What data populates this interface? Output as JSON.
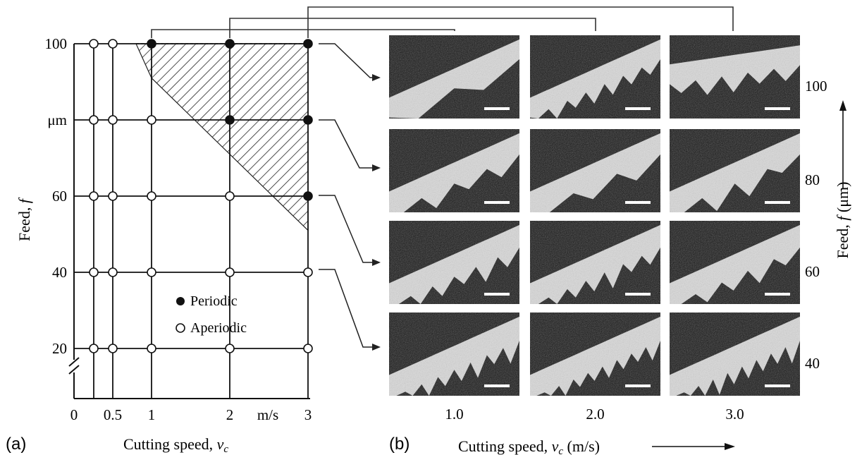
{
  "panel_a": {
    "label": "(a)",
    "xlabel_prefix": "Cutting speed, ",
    "xlabel_var": "v",
    "xlabel_sub": "c",
    "ylabel_prefix": "Feed, ",
    "ylabel_var": "f",
    "x_ticks": [
      {
        "label": "0",
        "x": 0
      },
      {
        "label": "0.5",
        "x": 0.5
      },
      {
        "label": "1",
        "x": 1
      },
      {
        "label": "2",
        "x": 2
      },
      {
        "label": "m/s",
        "x": 2.5
      },
      {
        "label": "3",
        "x": 3
      }
    ],
    "y_ticks": [
      {
        "label": "100",
        "y": 100
      },
      {
        "label": "μm",
        "y": 80
      },
      {
        "label": "60",
        "y": 60
      },
      {
        "label": "40",
        "y": 40
      },
      {
        "label": "20",
        "y": 20
      }
    ],
    "legend": {
      "periodic": "Periodic",
      "aperiodic": "Aperiodic"
    }
  },
  "chart_data": {
    "type": "scatter",
    "x_values": [
      0.25,
      0.5,
      1,
      2,
      3
    ],
    "y_values": [
      100,
      80,
      60,
      40,
      20
    ],
    "series": [
      {
        "name": "Periodic",
        "points": [
          [
            1,
            100
          ],
          [
            2,
            100
          ],
          [
            3,
            100
          ],
          [
            2,
            80
          ],
          [
            3,
            80
          ],
          [
            3,
            60
          ]
        ]
      },
      {
        "name": "Aperiodic",
        "points": [
          [
            0.25,
            100
          ],
          [
            0.5,
            100
          ],
          [
            0.25,
            80
          ],
          [
            0.5,
            80
          ],
          [
            1,
            80
          ],
          [
            0.25,
            60
          ],
          [
            0.5,
            60
          ],
          [
            1,
            60
          ],
          [
            2,
            60
          ],
          [
            0.25,
            40
          ],
          [
            0.5,
            40
          ],
          [
            1,
            40
          ],
          [
            2,
            40
          ],
          [
            3,
            40
          ],
          [
            0.25,
            20
          ],
          [
            0.5,
            20
          ],
          [
            1,
            20
          ],
          [
            2,
            20
          ],
          [
            3,
            20
          ]
        ]
      }
    ],
    "hatched_region": [
      [
        0.8,
        100
      ],
      [
        3,
        100
      ],
      [
        3,
        51
      ],
      [
        1,
        91
      ]
    ]
  },
  "panel_b": {
    "label": "(b)",
    "xlabel_prefix": "Cutting speed, ",
    "xlabel_var": "v",
    "xlabel_sub": "c",
    "xlabel_unit": " (m/s)",
    "ylabel_prefix": "Feed, ",
    "ylabel_var": "f",
    "ylabel_unit": " (μm)",
    "columns": [
      "1.0",
      "2.0",
      "3.0"
    ],
    "rows": [
      "100",
      "80",
      "60",
      "40"
    ]
  }
}
